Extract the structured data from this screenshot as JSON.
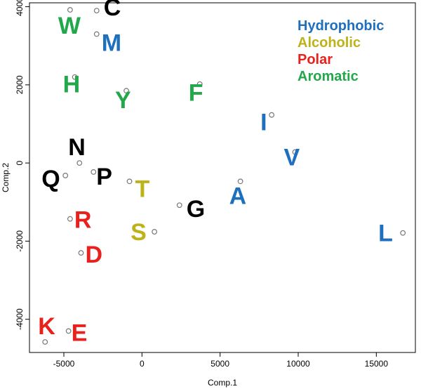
{
  "chart_data": {
    "type": "scatter",
    "xlabel": "Comp.1",
    "ylabel": "Comp.2",
    "xlim": [
      -7200,
      17500
    ],
    "ylim": [
      -4850,
      4100
    ],
    "x_ticks": [
      -5000,
      0,
      5000,
      10000,
      15000
    ],
    "y_ticks": [
      -4000,
      -2000,
      0,
      2000,
      4000
    ],
    "categories_legend": [
      {
        "name": "Hydrophobic",
        "color": "#1f6fbf"
      },
      {
        "name": "Alcoholic",
        "color": "#bdb319"
      },
      {
        "name": "Polar",
        "color": "#e8211d"
      },
      {
        "name": "Aromatic",
        "color": "#22a84a"
      }
    ],
    "unclassified_color": "#000000",
    "points": [
      {
        "label": "C",
        "x": -2900,
        "y": 3900,
        "category": "none"
      },
      {
        "label": "W",
        "x": -4600,
        "y": 3920,
        "category": "Aromatic"
      },
      {
        "label": "M",
        "x": -2900,
        "y": 3300,
        "category": "Hydrophobic"
      },
      {
        "label": "H",
        "x": -4300,
        "y": 2200,
        "category": "Aromatic"
      },
      {
        "label": "Y",
        "x": -1000,
        "y": 1850,
        "category": "Aromatic"
      },
      {
        "label": "F",
        "x": 3700,
        "y": 2020,
        "category": "Aromatic"
      },
      {
        "label": "I",
        "x": 8300,
        "y": 1230,
        "category": "Hydrophobic"
      },
      {
        "label": "V",
        "x": 9800,
        "y": 280,
        "category": "Hydrophobic"
      },
      {
        "label": "N",
        "x": -4000,
        "y": 0,
        "category": "none"
      },
      {
        "label": "Q",
        "x": -4900,
        "y": -320,
        "category": "none"
      },
      {
        "label": "P",
        "x": -3100,
        "y": -230,
        "category": "none"
      },
      {
        "label": "T",
        "x": -800,
        "y": -470,
        "category": "Alcoholic"
      },
      {
        "label": "A",
        "x": 6300,
        "y": -470,
        "category": "Hydrophobic"
      },
      {
        "label": "G",
        "x": 2400,
        "y": -1080,
        "category": "none"
      },
      {
        "label": "R",
        "x": -4600,
        "y": -1430,
        "category": "Polar"
      },
      {
        "label": "S",
        "x": 800,
        "y": -1760,
        "category": "Alcoholic"
      },
      {
        "label": "L",
        "x": 16700,
        "y": -1790,
        "category": "Hydrophobic"
      },
      {
        "label": "D",
        "x": -3900,
        "y": -2300,
        "category": "Polar"
      },
      {
        "label": "E",
        "x": -4700,
        "y": -4300,
        "category": "Polar"
      },
      {
        "label": "K",
        "x": -6200,
        "y": -4580,
        "category": "Polar"
      }
    ]
  }
}
